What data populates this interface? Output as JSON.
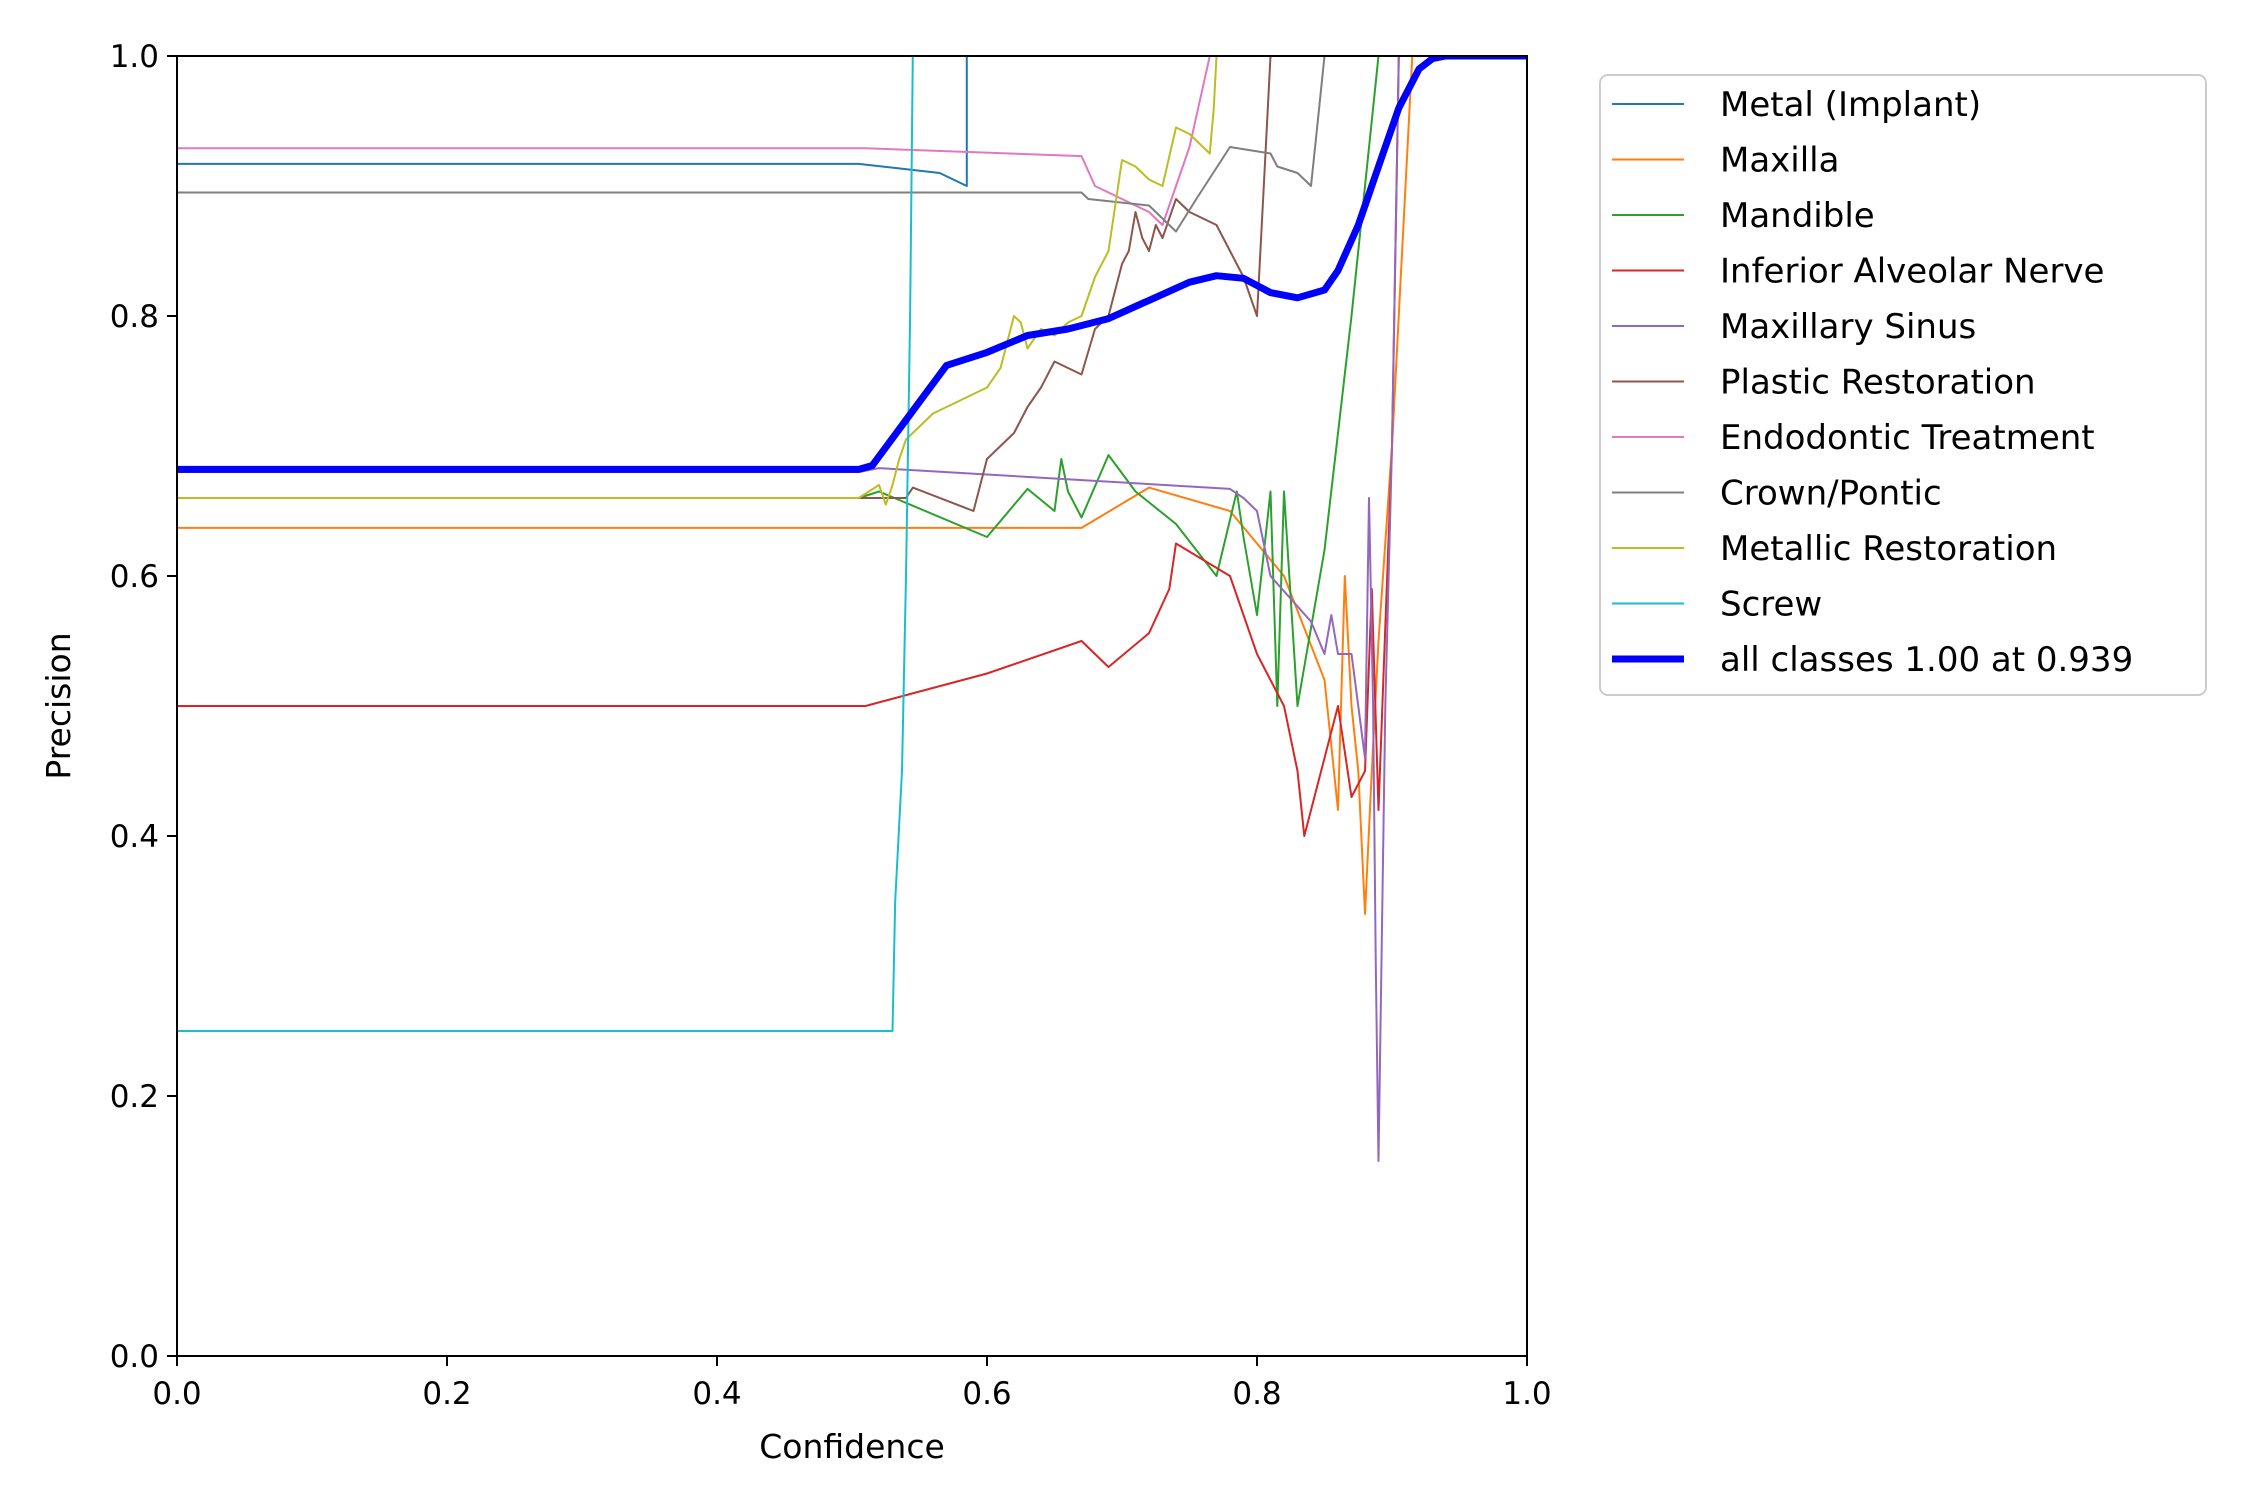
{
  "chart_data": {
    "type": "line",
    "title": "",
    "xlabel": "Confidence",
    "ylabel": "Precision",
    "xlim": [
      0,
      1
    ],
    "ylim": [
      0,
      1
    ],
    "xticks": [
      "0.0",
      "0.2",
      "0.4",
      "0.6",
      "0.8",
      "1.0"
    ],
    "yticks": [
      "0.0",
      "0.2",
      "0.4",
      "0.6",
      "0.8",
      "1.0"
    ],
    "legend_position": "outside-right",
    "grid": false,
    "series": [
      {
        "name": "Metal (Implant)",
        "color": "#1f77b4",
        "width": 2,
        "x": [
          0,
          0.505,
          0.565,
          0.585,
          0.585,
          1.0
        ],
        "y": [
          0.917,
          0.917,
          0.91,
          0.9,
          1.0,
          1.0
        ]
      },
      {
        "name": "Maxilla",
        "color": "#ff7f0e",
        "width": 2,
        "x": [
          0,
          0.67,
          0.72,
          0.78,
          0.82,
          0.85,
          0.86,
          0.865,
          0.87,
          0.875,
          0.88,
          0.885,
          0.89,
          0.9,
          0.91,
          0.915,
          1.0
        ],
        "y": [
          0.637,
          0.637,
          0.668,
          0.65,
          0.6,
          0.52,
          0.42,
          0.6,
          0.5,
          0.45,
          0.34,
          0.45,
          0.55,
          0.7,
          0.9,
          1.0,
          1.0
        ]
      },
      {
        "name": "Mandible",
        "color": "#2ca02c",
        "width": 2,
        "x": [
          0,
          0.505,
          0.52,
          0.6,
          0.63,
          0.65,
          0.655,
          0.66,
          0.67,
          0.69,
          0.71,
          0.74,
          0.77,
          0.785,
          0.79,
          0.8,
          0.81,
          0.815,
          0.82,
          0.83,
          0.85,
          0.87,
          0.89,
          0.9,
          0.91,
          1.0
        ],
        "y": [
          0.66,
          0.66,
          0.665,
          0.63,
          0.667,
          0.65,
          0.69,
          0.665,
          0.645,
          0.693,
          0.665,
          0.64,
          0.6,
          0.665,
          0.63,
          0.57,
          0.665,
          0.5,
          0.665,
          0.5,
          0.62,
          0.8,
          1.0,
          1.0,
          1.0,
          1.0
        ]
      },
      {
        "name": "Inferior Alveolar Nerve",
        "color": "#d62728",
        "width": 2,
        "x": [
          0,
          0.51,
          0.6,
          0.67,
          0.69,
          0.72,
          0.735,
          0.74,
          0.78,
          0.79,
          0.8,
          0.82,
          0.83,
          0.835,
          0.85,
          0.86,
          0.87,
          0.88,
          0.885,
          0.89,
          0.9,
          0.905,
          1.0
        ],
        "y": [
          0.5,
          0.5,
          0.525,
          0.55,
          0.53,
          0.556,
          0.59,
          0.625,
          0.6,
          0.57,
          0.54,
          0.5,
          0.45,
          0.4,
          0.46,
          0.5,
          0.43,
          0.45,
          0.59,
          0.42,
          0.7,
          1.0,
          1.0
        ]
      },
      {
        "name": "Maxillary Sinus",
        "color": "#9467bd",
        "width": 2,
        "x": [
          0,
          0.505,
          0.52,
          0.78,
          0.79,
          0.8,
          0.81,
          0.84,
          0.85,
          0.855,
          0.86,
          0.87,
          0.88,
          0.883,
          0.886,
          0.888,
          0.89,
          0.895,
          0.9,
          0.905,
          1.0
        ],
        "y": [
          0.68,
          0.68,
          0.683,
          0.667,
          0.66,
          0.65,
          0.6,
          0.565,
          0.54,
          0.57,
          0.54,
          0.54,
          0.46,
          0.66,
          0.5,
          0.3,
          0.15,
          0.5,
          0.7,
          1.0,
          1.0
        ]
      },
      {
        "name": "Plastic Restoration",
        "color": "#8c564b",
        "width": 2,
        "x": [
          0,
          0.54,
          0.545,
          0.59,
          0.6,
          0.62,
          0.63,
          0.64,
          0.65,
          0.67,
          0.68,
          0.69,
          0.7,
          0.705,
          0.71,
          0.715,
          0.72,
          0.725,
          0.73,
          0.74,
          0.75,
          0.77,
          0.78,
          0.79,
          0.8,
          0.805,
          0.81,
          1.0
        ],
        "y": [
          0.66,
          0.66,
          0.668,
          0.65,
          0.69,
          0.71,
          0.73,
          0.745,
          0.765,
          0.755,
          0.79,
          0.8,
          0.84,
          0.85,
          0.88,
          0.86,
          0.85,
          0.87,
          0.86,
          0.89,
          0.88,
          0.87,
          0.85,
          0.83,
          0.8,
          0.9,
          1.0,
          1.0
        ]
      },
      {
        "name": "Endodontic Treatment",
        "color": "#e377c2",
        "width": 2,
        "x": [
          0,
          0.51,
          0.67,
          0.68,
          0.7,
          0.72,
          0.73,
          0.75,
          0.765,
          1.0
        ],
        "y": [
          0.929,
          0.929,
          0.923,
          0.9,
          0.89,
          0.88,
          0.87,
          0.93,
          1.0,
          1.0
        ]
      },
      {
        "name": "Crown/Pontic",
        "color": "#7f7f7f",
        "width": 2,
        "x": [
          0,
          0.67,
          0.675,
          0.72,
          0.73,
          0.74,
          0.755,
          0.78,
          0.81,
          0.815,
          0.83,
          0.835,
          0.84,
          0.845,
          0.85,
          1.0
        ],
        "y": [
          0.895,
          0.895,
          0.89,
          0.885,
          0.875,
          0.865,
          0.89,
          0.93,
          0.925,
          0.915,
          0.91,
          0.905,
          0.9,
          0.95,
          1.0,
          1.0
        ]
      },
      {
        "name": "Metallic Restoration",
        "color": "#bcbd22",
        "width": 2,
        "x": [
          0,
          0.505,
          0.52,
          0.525,
          0.53,
          0.535,
          0.54,
          0.56,
          0.57,
          0.6,
          0.61,
          0.62,
          0.625,
          0.63,
          0.64,
          0.65,
          0.66,
          0.67,
          0.68,
          0.69,
          0.7,
          0.71,
          0.72,
          0.73,
          0.74,
          0.75,
          0.76,
          0.765,
          0.768,
          0.77,
          1.0
        ],
        "y": [
          0.66,
          0.66,
          0.67,
          0.655,
          0.67,
          0.69,
          0.705,
          0.725,
          0.73,
          0.745,
          0.76,
          0.8,
          0.795,
          0.775,
          0.79,
          0.785,
          0.795,
          0.8,
          0.83,
          0.85,
          0.92,
          0.915,
          0.905,
          0.9,
          0.945,
          0.94,
          0.93,
          0.925,
          0.96,
          1.0,
          1.0
        ]
      },
      {
        "name": "Screw",
        "color": "#17becf",
        "width": 2,
        "x": [
          0,
          0.53,
          0.532,
          0.537,
          0.54,
          0.543,
          0.545,
          1.0
        ],
        "y": [
          0.25,
          0.25,
          0.35,
          0.45,
          0.6,
          0.8,
          1.0,
          1.0
        ]
      },
      {
        "name": "all classes 1.00 at 0.939",
        "color": "#0000ff",
        "width": 7,
        "x": [
          0,
          0.505,
          0.515,
          0.54,
          0.57,
          0.6,
          0.63,
          0.66,
          0.69,
          0.72,
          0.75,
          0.77,
          0.79,
          0.81,
          0.83,
          0.85,
          0.86,
          0.875,
          0.89,
          0.905,
          0.92,
          0.93,
          0.94,
          1.0
        ],
        "y": [
          0.682,
          0.682,
          0.685,
          0.72,
          0.762,
          0.772,
          0.785,
          0.79,
          0.798,
          0.812,
          0.826,
          0.831,
          0.829,
          0.818,
          0.814,
          0.82,
          0.835,
          0.87,
          0.915,
          0.96,
          0.99,
          0.998,
          1.0,
          1.0
        ]
      }
    ]
  }
}
